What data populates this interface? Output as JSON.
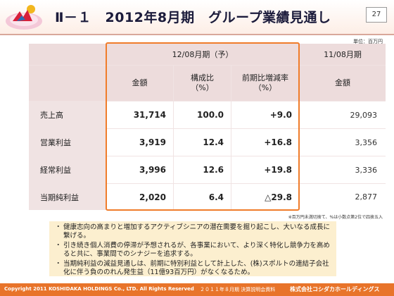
{
  "header": {
    "title": "Ⅱ－１　2012年8月期　グループ業績見通し",
    "page_number": "27"
  },
  "unit_label": "単位：百万円",
  "table": {
    "group_current": "12/08月期（予）",
    "group_prev": "11/08月期",
    "col_amount": "金額",
    "col_ratio_1": "構成比",
    "col_ratio_2": "（%）",
    "col_change_1": "前期比増減率",
    "col_change_2": "（%）",
    "col_prev_amount": "金額",
    "rows": [
      {
        "label": "売上高",
        "amount": "31,714",
        "ratio": "100.0",
        "change": "+9.0",
        "prev": "29,093"
      },
      {
        "label": "営業利益",
        "amount": "3,919",
        "ratio": "12.4",
        "change": "+16.8",
        "prev": "3,356"
      },
      {
        "label": "経常利益",
        "amount": "3,996",
        "ratio": "12.6",
        "change": "+19.8",
        "prev": "3,336"
      },
      {
        "label": "当期純利益",
        "amount": "2,020",
        "ratio": "6.4",
        "change": "△29.8",
        "prev": "2,877"
      }
    ]
  },
  "footnote": "※百万円未満切捨て、%は小数点第2位で四捨五入",
  "comments": [
    "健康志向の高まりと増加するアクティブシニアの潜在需要を掘り起こし、大いなる成長に繋げる。",
    "引き続き個人消費の停滞が予想されるが、各事業において、より深く特化し競争力を高めると共に、事業間でのシナジーを追求する。",
    "当期純利益の減益見通しは、前期に特別利益として計上した、(株)スポルトの連結子会社化に伴う負ののれん発生益（11億93百万円）がなくなるため。"
  ],
  "footer": {
    "copyright": "Copyright 2011 KOSHIDAKA HOLDINGS Co., LTD. All Rights Reserved",
    "doc_title": "２０１１年８月期 決算説明会資料",
    "company": "株式会社コシダカホールディングス"
  },
  "colors": {
    "accent_orange": "#f07c2a",
    "table_bg": "#f0e3e3",
    "comment_bg": "#fcefcf"
  }
}
